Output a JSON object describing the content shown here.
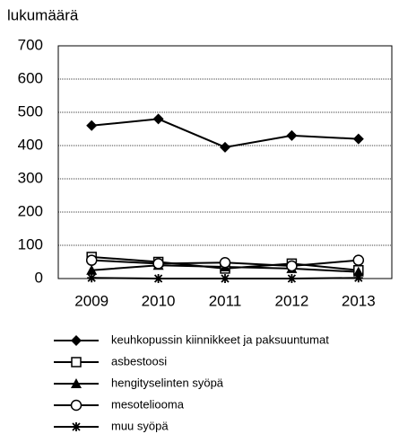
{
  "chart_data": {
    "type": "line",
    "y_label": "lukumäärä",
    "categories": [
      "2009",
      "2010",
      "2011",
      "2012",
      "2013"
    ],
    "series": [
      {
        "name": "keuhkopussin kiinnikkeet ja paksuuntumat",
        "color": "#000000",
        "marker": "diamond",
        "values": [
          460,
          480,
          395,
          430,
          420
        ]
      },
      {
        "name": "asbestoosi",
        "color": "#000000",
        "marker": "square",
        "values": [
          65,
          50,
          30,
          45,
          25
        ]
      },
      {
        "name": "hengityselinten syöpä",
        "color": "#000000",
        "marker": "triangle",
        "values": [
          25,
          40,
          35,
          30,
          20
        ]
      },
      {
        "name": "mesoteliooma",
        "color": "#000000",
        "marker": "circle",
        "values": [
          55,
          45,
          48,
          38,
          55
        ]
      },
      {
        "name": "muu syöpä",
        "color": "#000000",
        "marker": "star",
        "values": [
          2,
          0,
          0,
          0,
          2
        ]
      }
    ],
    "ylim": [
      0,
      700
    ],
    "yticks": [
      0,
      100,
      200,
      300,
      400,
      500,
      600,
      700
    ],
    "grid": true
  }
}
